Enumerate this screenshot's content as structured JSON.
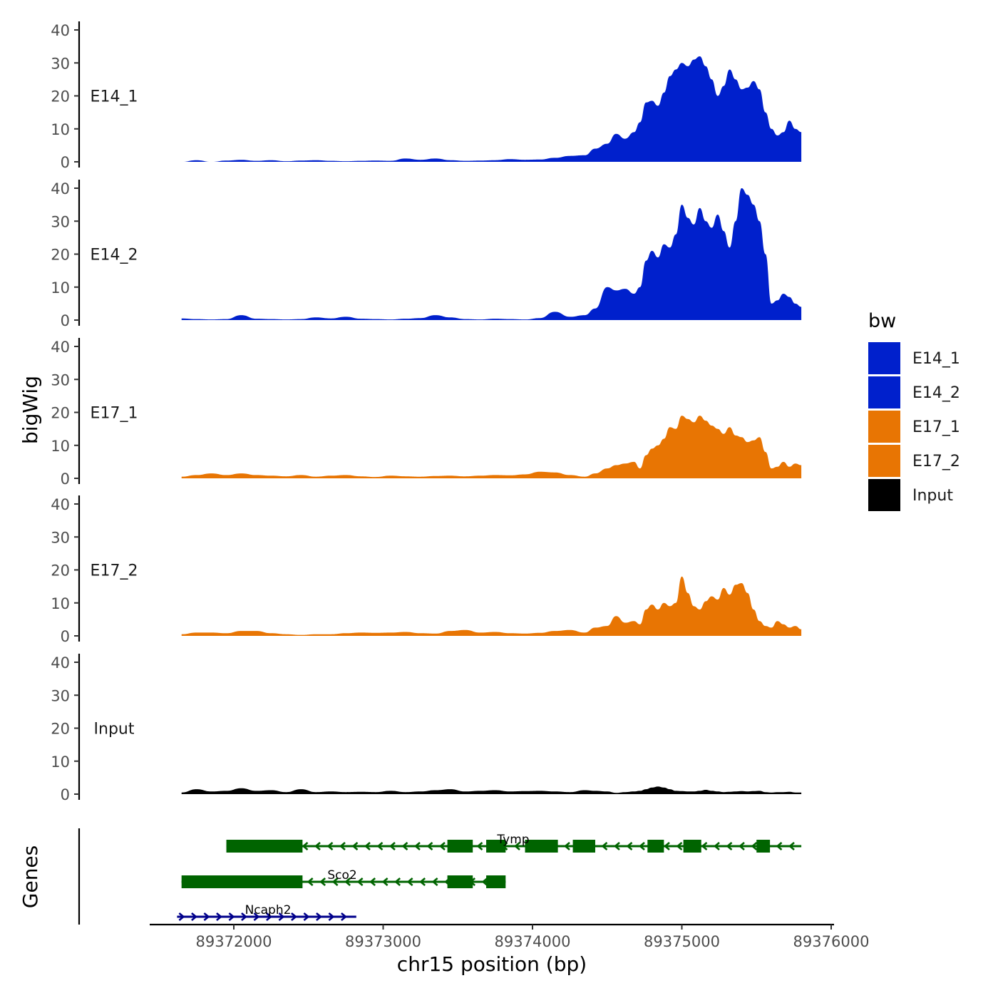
{
  "chart_data": {
    "type": "area",
    "title": "",
    "xlabel": "chr15 position (bp)",
    "ylabel": "bigWig",
    "genes_label": "Genes",
    "xlim": [
      89371400,
      89376000
    ],
    "ylim": [
      0,
      42
    ],
    "x_ticks": [
      89372000,
      89373000,
      89374000,
      89375000,
      89376000
    ],
    "y_ticks": [
      0,
      10,
      20,
      30,
      40
    ],
    "grid": false,
    "legend": {
      "title": "bw",
      "placement": "right",
      "entries": [
        {
          "label": "E14_1",
          "color": "#0020CC"
        },
        {
          "label": "E14_2",
          "color": "#0020CC"
        },
        {
          "label": "E17_1",
          "color": "#E87503"
        },
        {
          "label": "E17_2",
          "color": "#E87503"
        },
        {
          "label": "Input",
          "color": "#000000"
        }
      ]
    },
    "x": [
      89371650,
      89371750,
      89371850,
      89371950,
      89372050,
      89372150,
      89372250,
      89372350,
      89372450,
      89372550,
      89372650,
      89372750,
      89372850,
      89372950,
      89373050,
      89373150,
      89373250,
      89373350,
      89373450,
      89373550,
      89373650,
      89373750,
      89373850,
      89373950,
      89374050,
      89374150,
      89374250,
      89374350,
      89374420,
      89374500,
      89374560,
      89374620,
      89374680,
      89374720,
      89374760,
      89374800,
      89374840,
      89374880,
      89374920,
      89374960,
      89375000,
      89375040,
      89375080,
      89375120,
      89375160,
      89375200,
      89375240,
      89375280,
      89375320,
      89375360,
      89375400,
      89375440,
      89375480,
      89375520,
      89375560,
      89375600,
      89375640,
      89375680,
      89375720,
      89375760,
      89375800
    ],
    "series": [
      {
        "name": "E14_1",
        "color": "#0020CC",
        "values": [
          0,
          0.5,
          0,
          0.4,
          0.6,
          0.3,
          0.5,
          0.2,
          0.4,
          0.5,
          0.3,
          0.2,
          0.3,
          0.4,
          0.3,
          1.0,
          0.6,
          1.0,
          0.5,
          0.3,
          0.4,
          0.5,
          0.8,
          0.6,
          0.7,
          1.2,
          1.8,
          2.0,
          4.0,
          5.5,
          8.5,
          7.0,
          9.0,
          12.0,
          18.0,
          18.5,
          17.0,
          21.0,
          26.0,
          28.0,
          30.0,
          29.0,
          31.0,
          32.0,
          29.0,
          25.0,
          20.0,
          23.0,
          28.0,
          25.0,
          22.0,
          22.5,
          24.5,
          22.0,
          15.0,
          10.0,
          8.0,
          9.0,
          12.5,
          10.0,
          9.0
        ]
      },
      {
        "name": "E14_2",
        "color": "#0020CC",
        "values": [
          0.5,
          0.3,
          0.2,
          0.3,
          1.5,
          0.4,
          0.3,
          0.2,
          0.3,
          0.8,
          0.5,
          1.0,
          0.4,
          0.3,
          0.2,
          0.4,
          0.6,
          1.5,
          0.8,
          0.3,
          0.2,
          0.4,
          0.3,
          0.2,
          0.6,
          2.5,
          1.0,
          1.5,
          3.5,
          10.0,
          9.0,
          9.5,
          8.0,
          10.0,
          18.0,
          21.0,
          19.0,
          23.0,
          22.0,
          26.0,
          35.0,
          31.0,
          29.0,
          34.0,
          30.0,
          28.0,
          32.0,
          27.0,
          22.0,
          30.0,
          40.0,
          38.0,
          35.0,
          30.0,
          20.0,
          5.0,
          6.0,
          8.0,
          7.0,
          5.0,
          4.0
        ]
      },
      {
        "name": "E17_1",
        "color": "#E87503",
        "values": [
          0.5,
          1.0,
          1.5,
          1.0,
          1.5,
          1.0,
          0.8,
          0.6,
          1.0,
          0.5,
          0.8,
          1.0,
          0.6,
          0.4,
          0.8,
          0.6,
          0.5,
          0.7,
          0.8,
          0.6,
          0.8,
          1.0,
          0.9,
          1.2,
          2.0,
          1.8,
          1.0,
          0.5,
          1.5,
          3.0,
          4.0,
          4.5,
          5.0,
          3.0,
          7.0,
          9.0,
          10.0,
          12.0,
          15.5,
          15.0,
          19.0,
          18.0,
          17.0,
          19.0,
          17.5,
          16.0,
          15.0,
          13.5,
          15.5,
          13.0,
          12.5,
          11.0,
          11.5,
          12.5,
          8.0,
          3.0,
          3.5,
          5.0,
          3.5,
          4.5,
          4.0
        ]
      },
      {
        "name": "E17_2",
        "color": "#E87503",
        "values": [
          0.5,
          1.0,
          1.0,
          0.8,
          1.5,
          1.5,
          0.8,
          0.5,
          0.3,
          0.5,
          0.5,
          0.8,
          1.0,
          0.9,
          1.0,
          1.2,
          0.8,
          0.7,
          1.5,
          1.8,
          1.0,
          1.2,
          0.8,
          0.7,
          0.9,
          1.5,
          1.8,
          1.0,
          2.5,
          3.0,
          6.0,
          4.0,
          4.5,
          3.5,
          8.0,
          9.5,
          8.0,
          10.0,
          9.0,
          10.0,
          18.0,
          13.0,
          9.0,
          8.0,
          10.5,
          12.0,
          11.0,
          14.5,
          12.5,
          15.5,
          16.0,
          13.0,
          8.0,
          4.5,
          3.0,
          2.5,
          4.5,
          3.5,
          2.5,
          3.0,
          2.0
        ]
      },
      {
        "name": "Input",
        "color": "#000000",
        "values": [
          0.5,
          1.5,
          0.8,
          1.0,
          1.8,
          1.0,
          1.2,
          0.6,
          1.5,
          0.6,
          0.8,
          0.6,
          0.7,
          0.6,
          1.0,
          0.6,
          0.8,
          1.2,
          1.5,
          0.8,
          1.0,
          1.2,
          0.8,
          0.9,
          1.0,
          0.8,
          0.6,
          1.2,
          1.0,
          0.8,
          0.4,
          0.6,
          0.8,
          1.0,
          1.5,
          2.0,
          2.3,
          2.0,
          1.5,
          1.0,
          0.9,
          0.8,
          0.8,
          1.0,
          1.3,
          1.0,
          0.8,
          0.6,
          0.7,
          0.8,
          0.9,
          0.8,
          0.9,
          1.0,
          0.6,
          0.5,
          0.6,
          0.6,
          0.7,
          0.5,
          0.5
        ]
      }
    ],
    "genes": [
      {
        "name": "Tymp",
        "strand": "-",
        "color": "#006400",
        "start": 89371950,
        "end": 89375800,
        "exons": [
          [
            89371950,
            89372460
          ],
          [
            89373430,
            89373600
          ],
          [
            89373690,
            89373820
          ],
          [
            89373950,
            89374170
          ],
          [
            89374270,
            89374420
          ],
          [
            89374770,
            89374880
          ],
          [
            89375010,
            89375130
          ],
          [
            89375500,
            89375590
          ]
        ]
      },
      {
        "name": "Sco2",
        "strand": "-",
        "color": "#006400",
        "start": 89371650,
        "end": 89373820,
        "exons": [
          [
            89371650,
            89372460
          ],
          [
            89373430,
            89373600
          ],
          [
            89373690,
            89373820
          ]
        ]
      },
      {
        "name": "Ncaph2",
        "strand": "+",
        "color": "#00008B",
        "start": 89371620,
        "end": 89372820,
        "exons": []
      }
    ]
  }
}
